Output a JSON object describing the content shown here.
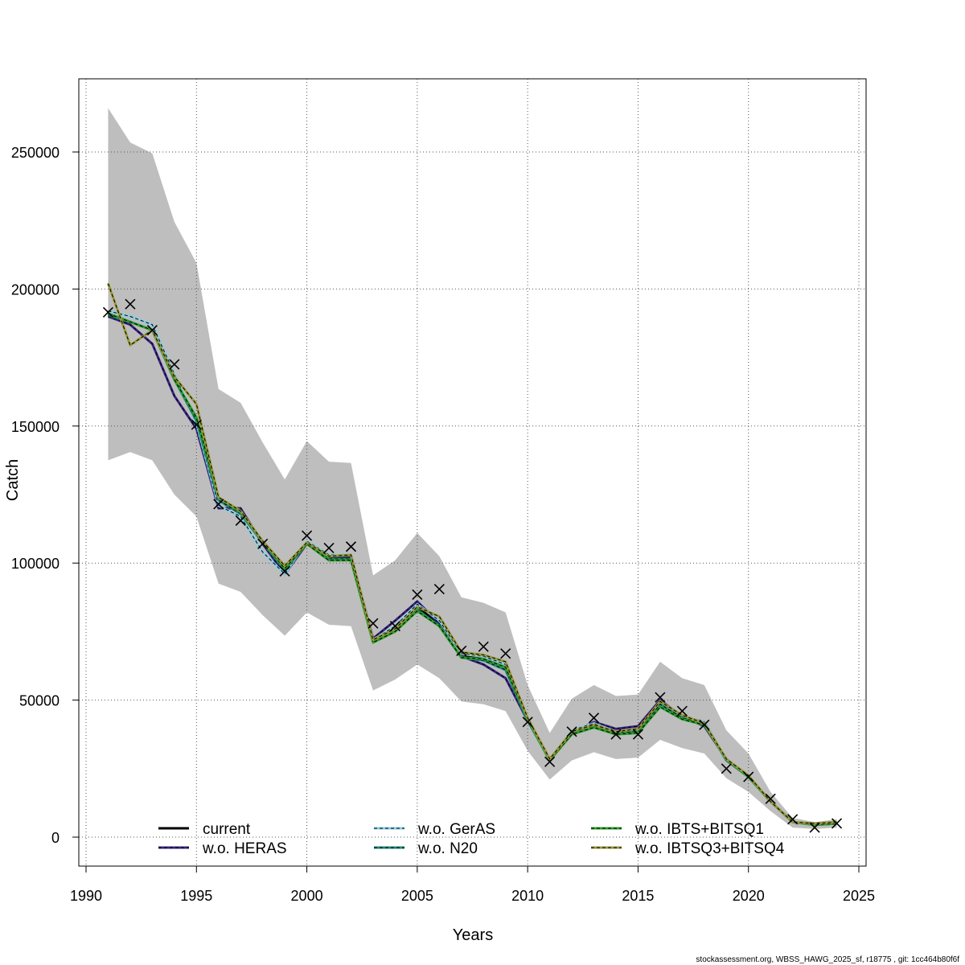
{
  "chart_data": {
    "type": "line",
    "xlabel": "Years",
    "ylabel": "Catch",
    "xlim": [
      1990,
      2025
    ],
    "ylim": [
      0,
      250000
    ],
    "x_ticks": [
      1990,
      1995,
      2000,
      2005,
      2010,
      2015,
      2020,
      2025
    ],
    "y_ticks": [
      0,
      50000,
      100000,
      150000,
      200000,
      250000
    ],
    "x_tick_labels": [
      "1990",
      "1995",
      "2000",
      "2005",
      "2010",
      "2015",
      "2020",
      "2025"
    ],
    "y_tick_labels": [
      "0",
      "50000",
      "100000",
      "150000",
      "200000",
      "250000"
    ],
    "grid": true,
    "legend_position": "bottom",
    "band": {
      "color": "#bebebe",
      "x": [
        1991,
        1992,
        1993,
        1994,
        1995,
        1996,
        1997,
        1998,
        1999,
        2000,
        2001,
        2002,
        2003,
        2004,
        2005,
        2006,
        2007,
        2008,
        2009,
        2010,
        2011,
        2012,
        2013,
        2014,
        2015,
        2016,
        2017,
        2018,
        2019,
        2020,
        2021,
        2022,
        2023,
        2024
      ],
      "lower": [
        137500,
        140500,
        137500,
        125000,
        117000,
        92500,
        89500,
        81000,
        73500,
        82000,
        77500,
        77000,
        53500,
        57500,
        63000,
        58000,
        49500,
        48500,
        46000,
        31500,
        21000,
        28000,
        31000,
        28500,
        29000,
        35500,
        32500,
        30500,
        21500,
        16500,
        9500,
        3500,
        3000,
        3500
      ],
      "upper": [
        266000,
        253500,
        249500,
        224500,
        209500,
        163500,
        158500,
        144000,
        130500,
        144500,
        137000,
        136500,
        95500,
        101000,
        111000,
        102500,
        87500,
        85500,
        82000,
        55500,
        38000,
        50500,
        55500,
        51500,
        52000,
        64000,
        58000,
        55500,
        39000,
        30500,
        16500,
        7000,
        5500,
        6500
      ]
    },
    "observed": {
      "marker": "x",
      "x": [
        1991,
        1992,
        1993,
        1994,
        1995,
        1996,
        1997,
        1998,
        1999,
        2000,
        2001,
        2002,
        2003,
        2004,
        2005,
        2006,
        2007,
        2008,
        2009,
        2010,
        2011,
        2012,
        2013,
        2014,
        2015,
        2016,
        2017,
        2018,
        2019,
        2020,
        2021,
        2022,
        2023,
        2024
      ],
      "values": [
        191500,
        194500,
        185000,
        172500,
        150500,
        121500,
        115500,
        107000,
        97000,
        110000,
        105500,
        106000,
        78000,
        77000,
        88500,
        90500,
        68000,
        69500,
        67000,
        42000,
        27500,
        38500,
        43500,
        37500,
        37500,
        51000,
        46000,
        41000,
        25000,
        22000,
        14000,
        6500,
        3500,
        5000
      ]
    },
    "series": [
      {
        "name": "current",
        "color": "#000000",
        "dash": "",
        "values": [
          191000,
          188000,
          185000,
          167000,
          153000,
          123000,
          118000,
          108000,
          98000,
          107000,
          102000,
          102000,
          72000,
          76000,
          84000,
          78000,
          66000,
          65000,
          62000,
          43000,
          28000,
          38000,
          41000,
          38000,
          39000,
          49000,
          44000,
          42000,
          28000,
          22000,
          13000,
          5500,
          4500,
          5000
        ]
      },
      {
        "name": "w.o. HERAS",
        "color": "#3b2585",
        "dash": "4 3",
        "values": [
          190000,
          187000,
          180000,
          161000,
          149000,
          120000,
          120000,
          107000,
          96000,
          107000,
          102500,
          102500,
          72500,
          79000,
          86000,
          78000,
          66000,
          63000,
          58000,
          42500,
          28500,
          38000,
          42000,
          39500,
          40500,
          50000,
          44000,
          40500,
          28500,
          22000,
          13000,
          5500,
          4500,
          5000
        ]
      },
      {
        "name": "w.o. GerAS",
        "color": "#87cfe8",
        "dash": "4 3",
        "values": [
          192000,
          190000,
          187000,
          169000,
          151000,
          121000,
          117000,
          104000,
          96000,
          108000,
          103000,
          103000,
          72000,
          77000,
          85000,
          79000,
          67000,
          66000,
          63000,
          43000,
          28000,
          39000,
          41500,
          38500,
          39000,
          49500,
          44000,
          42000,
          28000,
          22000,
          13000,
          5500,
          4500,
          5000
        ]
      },
      {
        "name": "w.o. N20",
        "color": "#1e8a7a",
        "dash": "4 3",
        "values": [
          190500,
          188000,
          185000,
          167000,
          152000,
          123000,
          118000,
          107500,
          97500,
          107000,
          101500,
          101500,
          71500,
          75500,
          83000,
          77000,
          65500,
          64500,
          61000,
          42500,
          28000,
          38000,
          40500,
          38000,
          38500,
          48500,
          43500,
          41500,
          28000,
          22000,
          13000,
          5500,
          4500,
          5000
        ]
      },
      {
        "name": "w.o. IBTS+BITSQ1",
        "color": "#2ca02c",
        "dash": "4 3",
        "values": [
          191000,
          188000,
          185000,
          167000,
          153000,
          124000,
          118500,
          108000,
          98000,
          107000,
          101000,
          101000,
          71000,
          75000,
          82500,
          77000,
          65500,
          65000,
          62000,
          43000,
          28000,
          37500,
          40000,
          37500,
          38000,
          47500,
          43000,
          41000,
          28500,
          22000,
          13000,
          5500,
          4500,
          5000
        ]
      },
      {
        "name": "w.o. IBTSQ3+BITSQ4",
        "color": "#9a9a3c",
        "dash": "4 3",
        "values": [
          202000,
          179500,
          185000,
          168000,
          158000,
          124000,
          119000,
          108000,
          99000,
          107500,
          102500,
          103000,
          72000,
          76000,
          84000,
          80500,
          67500,
          66500,
          64000,
          43500,
          28500,
          38500,
          41000,
          38500,
          39500,
          49500,
          44500,
          41500,
          28500,
          22500,
          13000,
          5500,
          5000,
          5500
        ]
      }
    ]
  },
  "footer": "stockassessment.org, WBSS_HAWG_2025_sf, r18775 , git: 1cc464b80f6f"
}
